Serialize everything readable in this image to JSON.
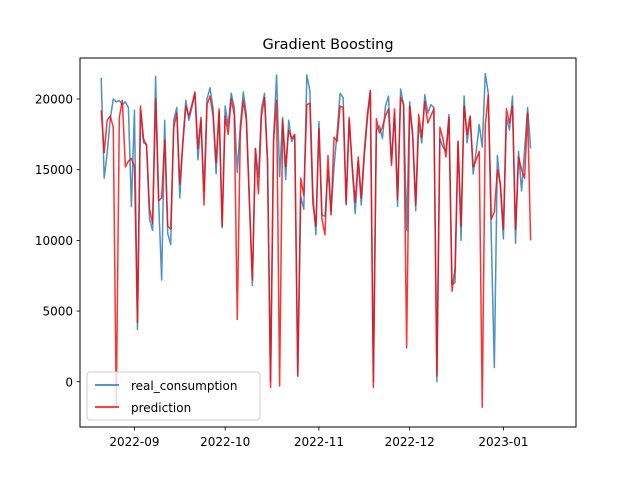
{
  "chart_data": {
    "type": "line",
    "title": "Gradient Boosting",
    "xlabel": "",
    "ylabel": "",
    "xlim": [
      "2022-08-14",
      "2023-01-25"
    ],
    "ylim": [
      -3200,
      22900
    ],
    "x_ticks": [
      {
        "date": "2022-09-01",
        "label": "2022-09"
      },
      {
        "date": "2022-10-01",
        "label": "2022-10"
      },
      {
        "date": "2022-11-01",
        "label": "2022-11"
      },
      {
        "date": "2022-12-01",
        "label": "2022-12"
      },
      {
        "date": "2023-01-01",
        "label": "2023-01"
      }
    ],
    "y_ticks": [
      0,
      5000,
      10000,
      15000,
      20000
    ],
    "grid": false,
    "legend": {
      "placement": "lower-left"
    },
    "start_date": "2022-08-21",
    "series": [
      {
        "name": "real_consumption",
        "color": "#1f77b4",
        "values": [
          21500,
          14400,
          16200,
          18600,
          20000,
          19800,
          19900,
          19600,
          19800,
          19400,
          12400,
          19200,
          3700,
          19200,
          16900,
          16800,
          11500,
          10700,
          21600,
          12800,
          7200,
          18500,
          10500,
          9700,
          18500,
          19400,
          13000,
          17000,
          19900,
          18500,
          19400,
          20400,
          15700,
          18500,
          13500,
          20000,
          20800,
          19300,
          14700,
          19100,
          10900,
          19500,
          18100,
          20400,
          19400,
          14800,
          18100,
          20500,
          18900,
          13000,
          6800,
          16500,
          14500,
          19300,
          20400,
          15700,
          0,
          17300,
          21700,
          14500,
          18700,
          14300,
          18500,
          17000,
          17400,
          400,
          13100,
          12200,
          21700,
          20600,
          13400,
          10400,
          18400,
          11800,
          11700,
          15000,
          12000,
          15200,
          17600,
          20400,
          20100,
          12500,
          18500,
          15100,
          11900,
          15600,
          12500,
          15900,
          18500,
          20600,
          0,
          17800,
          18100,
          17200,
          19500,
          20200,
          15500,
          19000,
          12400,
          20700,
          19600,
          10700,
          19800,
          17500,
          12100,
          18300,
          16900,
          20300,
          19000,
          19600,
          19400,
          0,
          17200,
          16600,
          16300,
          18900,
          6900,
          7000,
          17000,
          10000,
          20200,
          16900,
          18700,
          14700,
          16300,
          18200,
          16600,
          21800,
          20400,
          10100,
          1000,
          16000,
          13800,
          10100,
          18700,
          17800,
          20200,
          9800,
          16300,
          13500,
          16400,
          19400,
          16500
        ]
      },
      {
        "name": "prediction",
        "color": "#ff0000",
        "values": [
          19200,
          16200,
          18500,
          18800,
          18000,
          -1800,
          18700,
          19900,
          15200,
          15600,
          15800,
          15200,
          4200,
          19500,
          17200,
          16700,
          12200,
          11200,
          20000,
          12800,
          13000,
          17100,
          11000,
          10800,
          18000,
          19000,
          14000,
          16800,
          19500,
          18800,
          19600,
          20500,
          16500,
          18700,
          12500,
          19600,
          20200,
          18800,
          15500,
          19300,
          11000,
          18800,
          17500,
          20000,
          18900,
          4400,
          17600,
          19900,
          18500,
          12700,
          7200,
          16500,
          13300,
          18800,
          20100,
          15500,
          -400,
          17000,
          19900,
          -300,
          18500,
          15200,
          17800,
          17200,
          17500,
          400,
          14400,
          13200,
          19600,
          19700,
          12600,
          11000,
          17900,
          11500,
          10400,
          16000,
          11800,
          17300,
          17000,
          19500,
          19400,
          12600,
          18700,
          15300,
          12700,
          15900,
          13000,
          16300,
          18900,
          20600,
          -400,
          18600,
          17600,
          18000,
          18800,
          19300,
          15300,
          19300,
          12900,
          20100,
          19600,
          2400,
          19500,
          17400,
          12500,
          18900,
          17300,
          19800,
          18300,
          18800,
          19300,
          400,
          18000,
          17200,
          15900,
          18700,
          6400,
          8000,
          17000,
          11000,
          19500,
          17500,
          18800,
          15200,
          15700,
          16300,
          -1800,
          18100,
          20300,
          11500,
          12000,
          15000,
          14000,
          10800,
          19300,
          18300,
          19500,
          10800,
          15900,
          15000,
          14400,
          19000,
          10000
        ]
      }
    ]
  }
}
